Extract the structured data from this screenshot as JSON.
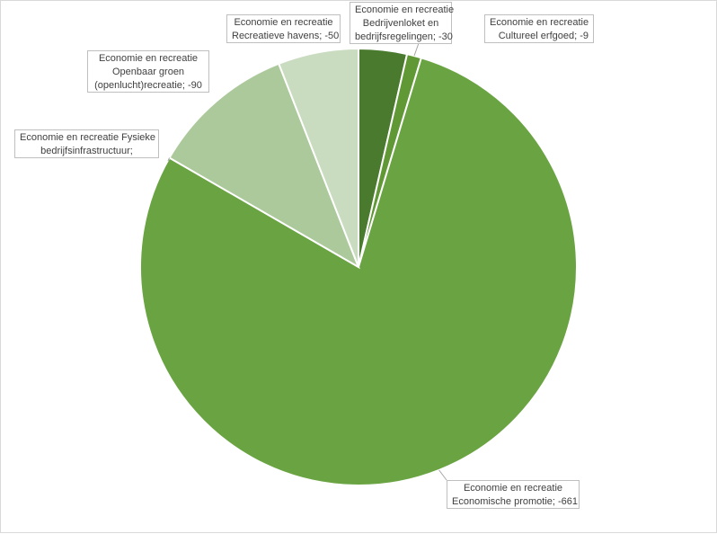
{
  "chart_data": {
    "type": "pie",
    "title": "",
    "labels": [
      "Economie en recreatie Bedrijvenloket en bedrijfsregelingen",
      "Economie en recreatie Cultureel erfgoed",
      "Economie en recreatie Economische promotie",
      "Economie en recreatie Fysieke bedrijfsinfrastructuur",
      "Economie en recreatie Openbaar groen (openlucht)recreatie",
      "Economie en recreatie Recreatieve havens"
    ],
    "values": [
      -30,
      -9,
      -661,
      0,
      -90,
      -50
    ],
    "colors": [
      "#4a7a2e",
      "#5f9834",
      "#6aa442",
      "#6aa442",
      "#abc99a",
      "#c9dcc0"
    ],
    "data_labels": {
      "bedrijvenloket": [
        "Economie en recreatie",
        "Bedrijvenloket en",
        "bedrijfsregelingen; -30"
      ],
      "erfgoed": [
        "Economie en recreatie",
        "Cultureel erfgoed; -9"
      ],
      "promotie": [
        "Economie en recreatie",
        "Economische promotie; -661"
      ],
      "fysieke": [
        "Economie en recreatie Fysieke",
        "bedrijfsinfrastructuur;"
      ],
      "groen": [
        "Economie en recreatie",
        "Openbaar groen",
        "(openlucht)recreatie; -90"
      ],
      "havens": [
        "Economie en recreatie",
        "Recreatieve havens; -50"
      ]
    }
  }
}
